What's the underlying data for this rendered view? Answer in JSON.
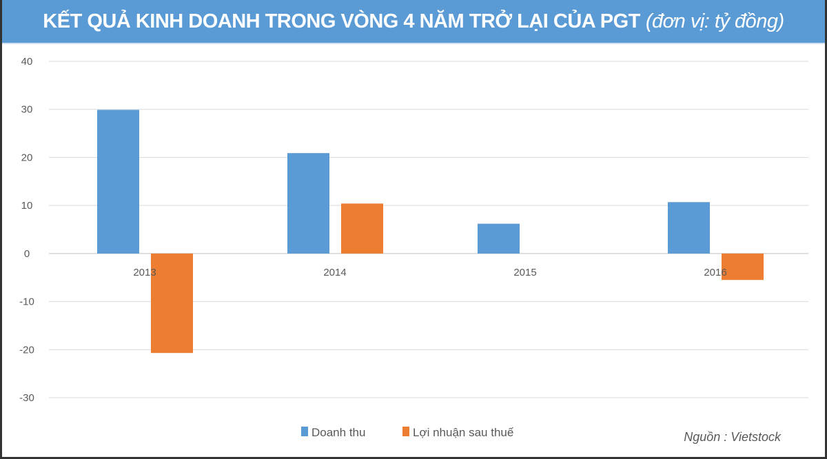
{
  "chart_data": {
    "type": "bar",
    "title": "KẾT QUẢ KINH DOANH TRONG VÒNG 4 NĂM TRỞ LẠI CỦA PGT",
    "subtitle": "(đơn vị: tỷ đồng)",
    "categories": [
      "2013",
      "2014",
      "2015",
      "2016"
    ],
    "series": [
      {
        "name": "Doanh thu",
        "color": "#5b9bd5",
        "values": [
          29.9,
          20.9,
          6.2,
          10.7
        ]
      },
      {
        "name": "Lợi nhuận sau thuế",
        "color": "#ed7d31",
        "values": [
          -20.7,
          10.4,
          0,
          -5.5
        ]
      }
    ],
    "xlabel": "",
    "ylabel": "",
    "ylim": [
      -30,
      40
    ],
    "yticks": [
      "40",
      "30",
      "20",
      "10",
      "0",
      "-10",
      "-20",
      "-30"
    ],
    "grid": true,
    "legend": "bottom-center",
    "source": "Nguồn : Vietstock"
  }
}
